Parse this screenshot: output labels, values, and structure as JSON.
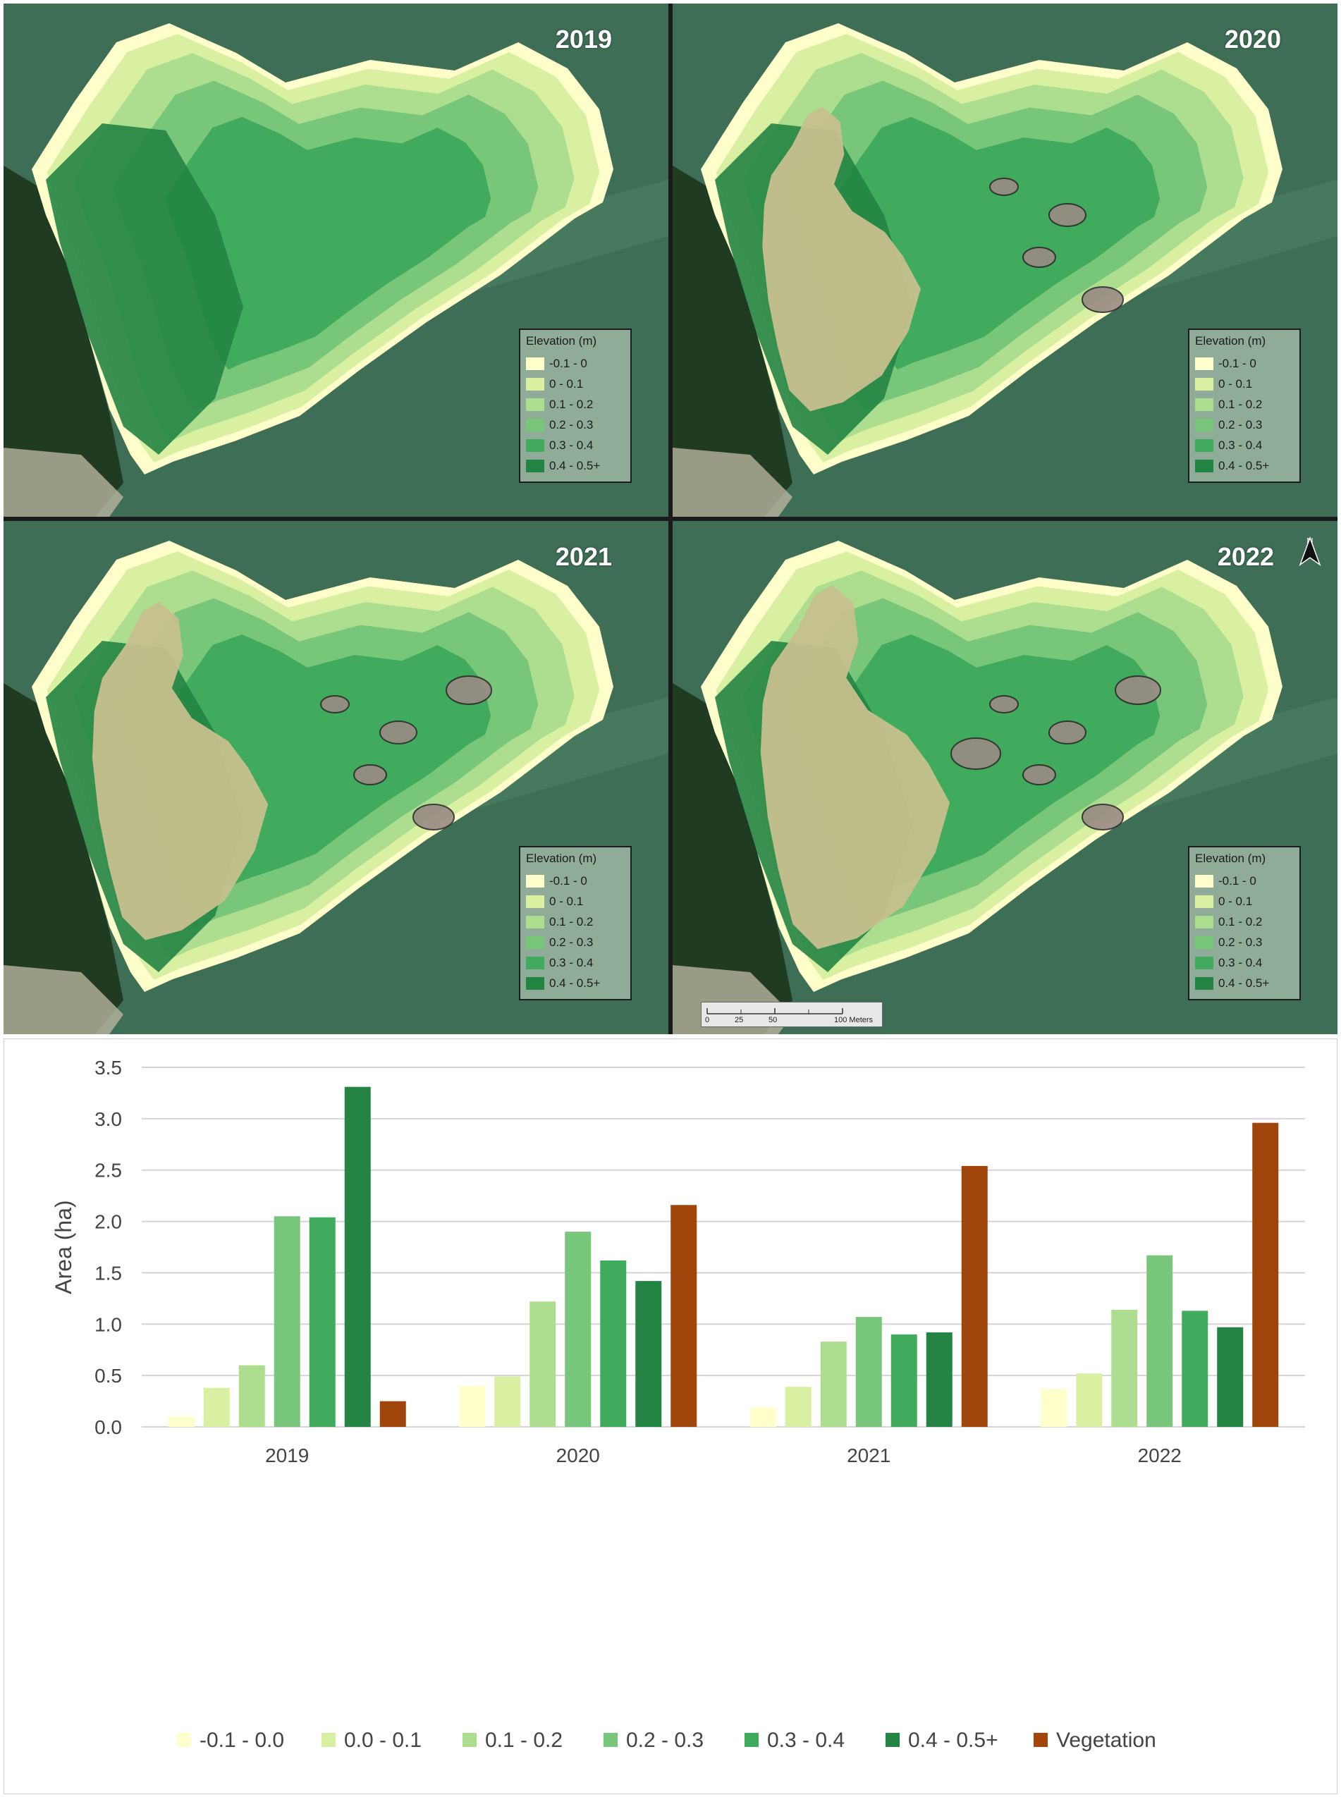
{
  "maps": [
    {
      "year": "2019",
      "vegetation": 0.0
    },
    {
      "year": "2020",
      "vegetation": 0.45
    },
    {
      "year": "2021",
      "vegetation": 0.62
    },
    {
      "year": "2022",
      "vegetation": 0.75
    }
  ],
  "map_legend": {
    "title": "Elevation (m)",
    "items": [
      {
        "label": "-0.1 - 0",
        "color": "#ffffcc"
      },
      {
        "label": "0 - 0.1",
        "color": "#d9f0a3"
      },
      {
        "label": "0.1 - 0.2",
        "color": "#addd8e"
      },
      {
        "label": "0.2 - 0.3",
        "color": "#78c679"
      },
      {
        "label": "0.3 - 0.4",
        "color": "#41ab5d"
      },
      {
        "label": "0.4 - 0.5+",
        "color": "#238443"
      }
    ]
  },
  "north_arrow": {
    "letter": "N"
  },
  "scale_bar": {
    "labels": [
      "0",
      "25",
      "50",
      "100 Meters"
    ]
  },
  "chart_data": {
    "type": "bar",
    "title": "",
    "xlabel": "",
    "ylabel": "Area (ha)",
    "ylim": [
      0,
      3.5
    ],
    "yticks": [
      "0.0",
      "0.5",
      "1.0",
      "1.5",
      "2.0",
      "2.5",
      "3.0",
      "3.5"
    ],
    "grid": true,
    "legend_position": "bottom",
    "categories": [
      "2019",
      "2020",
      "2021",
      "2022"
    ],
    "series": [
      {
        "name": "-0.1 - 0.0",
        "color": "#ffffcc",
        "values": [
          0.1,
          0.4,
          0.19,
          0.37
        ]
      },
      {
        "name": "0.0 - 0.1",
        "color": "#d9f0a3",
        "values": [
          0.38,
          0.49,
          0.39,
          0.52
        ]
      },
      {
        "name": "0.1 - 0.2",
        "color": "#addd8e",
        "values": [
          0.6,
          1.22,
          0.83,
          1.14
        ]
      },
      {
        "name": "0.2 - 0.3",
        "color": "#78c679",
        "values": [
          2.05,
          1.9,
          1.07,
          1.67
        ]
      },
      {
        "name": "0.3 - 0.4",
        "color": "#41ab5d",
        "values": [
          2.04,
          1.62,
          0.9,
          1.13
        ]
      },
      {
        "name": "0.4 - 0.5+",
        "color": "#238443",
        "values": [
          3.31,
          1.42,
          0.92,
          0.97
        ]
      },
      {
        "name": "Vegetation",
        "color": "#a0460c",
        "values": [
          0.25,
          2.16,
          2.54,
          2.96
        ]
      }
    ]
  }
}
